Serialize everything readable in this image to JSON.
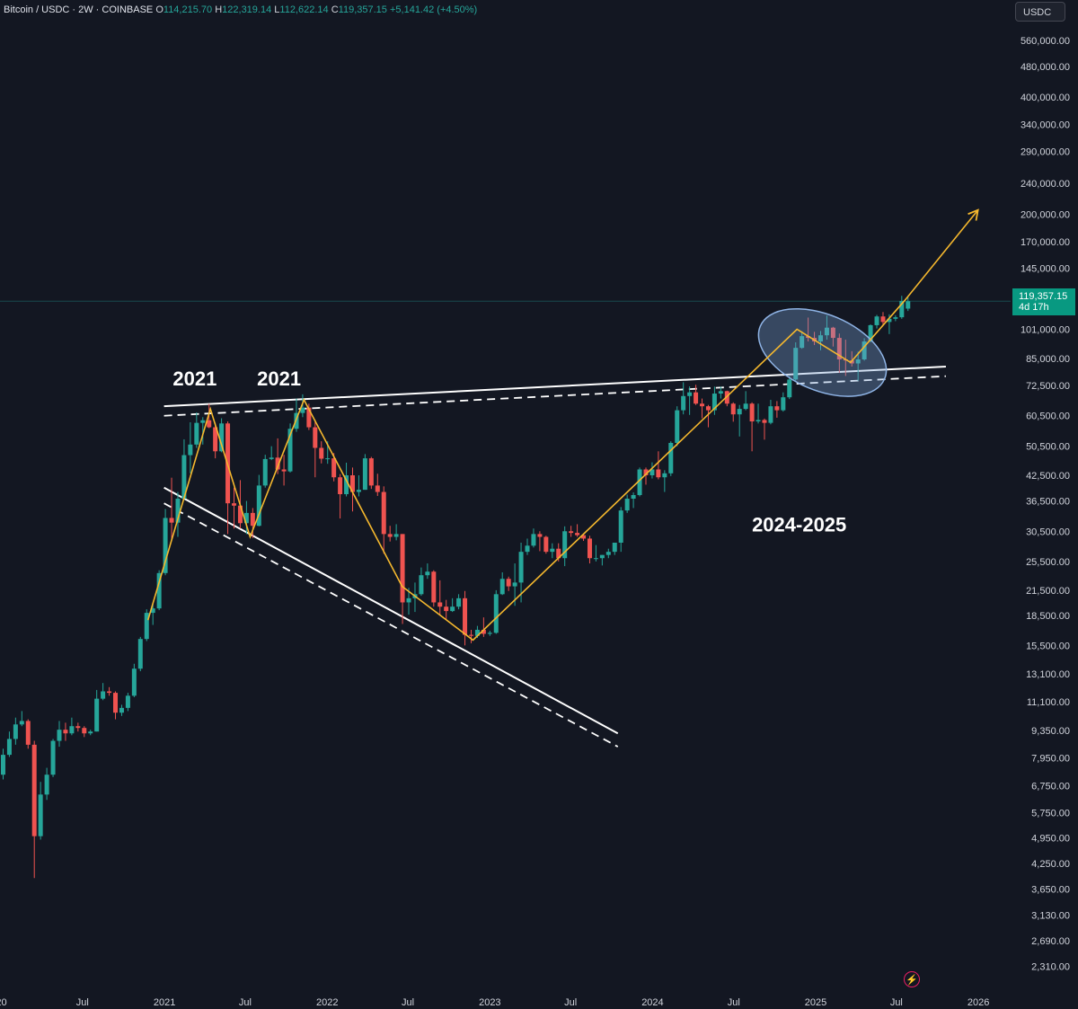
{
  "header": {
    "symbol": "Bitcoin / USDC · 2W · COINBASE",
    "o_label": "O",
    "o_value": "114,215.70",
    "h_label": "H",
    "h_value": "122,319.14",
    "l_label": "L",
    "l_value": "112,622.14",
    "c_label": "C",
    "c_value": "119,357.15",
    "change": "+5,141.42 (+4.50%)"
  },
  "currency_button": "USDC",
  "price_badge": {
    "price": "119,357.15",
    "countdown": "4d 17h"
  },
  "flash_icon": "lightning-icon",
  "colors": {
    "background": "#131722",
    "up": "#26a69a",
    "down": "#ef5350",
    "trend": "#f5b82e",
    "line": "#ffffff",
    "ellipse": "#7ba3d6"
  },
  "chart_data": {
    "type": "candlestick",
    "scale": "log",
    "ylim": [
      2050,
      640000
    ],
    "y_ticks": [
      {
        "label": "560,000.00",
        "v": 560000
      },
      {
        "label": "480,000.00",
        "v": 480000
      },
      {
        "label": "400,000.00",
        "v": 400000
      },
      {
        "label": "340,000.00",
        "v": 340000
      },
      {
        "label": "290,000.00",
        "v": 290000
      },
      {
        "label": "240,000.00",
        "v": 240000
      },
      {
        "label": "200,000.00",
        "v": 200000
      },
      {
        "label": "170,000.00",
        "v": 170000
      },
      {
        "label": "145,000.00",
        "v": 145000
      },
      {
        "label": "101,000.00",
        "v": 101000
      },
      {
        "label": "85,000.00",
        "v": 85000
      },
      {
        "label": "72,500.00",
        "v": 72500
      },
      {
        "label": "60,500.00",
        "v": 60500
      },
      {
        "label": "50,500.00",
        "v": 50500
      },
      {
        "label": "42,500.00",
        "v": 42500
      },
      {
        "label": "36,500.00",
        "v": 36500
      },
      {
        "label": "30,500.00",
        "v": 30500
      },
      {
        "label": "25,500.00",
        "v": 25500
      },
      {
        "label": "21,500.00",
        "v": 21500
      },
      {
        "label": "18,500.00",
        "v": 18500
      },
      {
        "label": "15,500.00",
        "v": 15500
      },
      {
        "label": "13,100.00",
        "v": 13100
      },
      {
        "label": "11,100.00",
        "v": 11100
      },
      {
        "label": "9,350.00",
        "v": 9350
      },
      {
        "label": "7,950.00",
        "v": 7950
      },
      {
        "label": "6,750.00",
        "v": 6750
      },
      {
        "label": "5,750.00",
        "v": 5750
      },
      {
        "label": "4,950.00",
        "v": 4950
      },
      {
        "label": "4,250.00",
        "v": 4250
      },
      {
        "label": "3,650.00",
        "v": 3650
      },
      {
        "label": "3,130.00",
        "v": 3130
      },
      {
        "label": "2,690.00",
        "v": 2690
      },
      {
        "label": "2,310.00",
        "v": 2310
      }
    ],
    "xlim": [
      "2019-12-29",
      "2026-02-12"
    ],
    "x_ticks": [
      {
        "label": "20",
        "t": "2020-01-01"
      },
      {
        "label": "Jul",
        "t": "2020-07-01"
      },
      {
        "label": "2021",
        "t": "2021-01-01"
      },
      {
        "label": "Jul",
        "t": "2021-07-01"
      },
      {
        "label": "2022",
        "t": "2022-01-01"
      },
      {
        "label": "Jul",
        "t": "2022-07-01"
      },
      {
        "label": "2023",
        "t": "2023-01-01"
      },
      {
        "label": "Jul",
        "t": "2023-07-01"
      },
      {
        "label": "2024",
        "t": "2024-01-01"
      },
      {
        "label": "Jul",
        "t": "2024-07-01"
      },
      {
        "label": "2025",
        "t": "2025-01-01"
      },
      {
        "label": "Jul",
        "t": "2025-07-01"
      },
      {
        "label": "2026",
        "t": "2026-01-01"
      }
    ],
    "candles": [
      [
        "2019-12-29",
        7200,
        8400,
        7000,
        8100
      ],
      [
        "2020-01-12",
        8100,
        9300,
        8000,
        8900
      ],
      [
        "2020-01-26",
        8900,
        10100,
        8600,
        9700
      ],
      [
        "2020-02-09",
        9700,
        10500,
        9600,
        9900
      ],
      [
        "2020-02-23",
        9900,
        10000,
        8400,
        8600
      ],
      [
        "2020-03-08",
        8600,
        8800,
        3900,
        5000
      ],
      [
        "2020-03-22",
        5000,
        6900,
        4900,
        6400
      ],
      [
        "2020-04-05",
        6400,
        7500,
        6200,
        7200
      ],
      [
        "2020-04-19",
        7200,
        8900,
        7100,
        8800
      ],
      [
        "2020-05-03",
        8800,
        9900,
        8500,
        9400
      ],
      [
        "2020-05-17",
        9400,
        9800,
        8800,
        9200
      ],
      [
        "2020-05-31",
        9200,
        10100,
        9100,
        9600
      ],
      [
        "2020-06-14",
        9600,
        9800,
        9300,
        9500
      ],
      [
        "2020-06-28",
        9500,
        9600,
        9000,
        9200
      ],
      [
        "2020-07-12",
        9200,
        9400,
        9100,
        9300
      ],
      [
        "2020-07-26",
        9300,
        11900,
        9300,
        11300
      ],
      [
        "2020-08-09",
        11300,
        12400,
        11200,
        11800
      ],
      [
        "2020-08-23",
        11800,
        12100,
        11500,
        11700
      ],
      [
        "2020-09-06",
        11700,
        11800,
        10000,
        10400
      ],
      [
        "2020-09-20",
        10400,
        10900,
        10200,
        10700
      ],
      [
        "2020-10-04",
        10700,
        11700,
        10500,
        11500
      ],
      [
        "2020-10-18",
        11500,
        13900,
        11400,
        13500
      ],
      [
        "2020-11-01",
        13500,
        16300,
        13300,
        16100
      ],
      [
        "2020-11-15",
        16100,
        19200,
        15900,
        18800
      ],
      [
        "2020-11-29",
        18800,
        19900,
        17500,
        19300
      ],
      [
        "2020-12-13",
        19300,
        24200,
        19100,
        23800
      ],
      [
        "2020-12-27",
        23800,
        34800,
        23500,
        33000
      ],
      [
        "2021-01-10",
        33000,
        41900,
        28800,
        32100
      ],
      [
        "2021-01-24",
        32100,
        38500,
        29500,
        37000
      ],
      [
        "2021-02-07",
        37000,
        52600,
        37000,
        47900
      ],
      [
        "2021-02-21",
        47900,
        58200,
        43000,
        51000
      ],
      [
        "2021-03-07",
        51000,
        61700,
        50000,
        58000
      ],
      [
        "2021-03-21",
        58000,
        60000,
        51000,
        58900
      ],
      [
        "2021-04-04",
        58900,
        64900,
        56200,
        56500
      ],
      [
        "2021-04-18",
        56500,
        58000,
        47000,
        49000
      ],
      [
        "2021-05-02",
        49000,
        59600,
        48700,
        57800
      ],
      [
        "2021-05-16",
        57800,
        58500,
        30000,
        36000
      ],
      [
        "2021-05-30",
        36000,
        39500,
        31000,
        35500
      ],
      [
        "2021-06-13",
        35500,
        41300,
        31000,
        32000
      ],
      [
        "2021-06-27",
        32000,
        36500,
        30000,
        34000
      ],
      [
        "2021-07-11",
        34000,
        35000,
        29300,
        31500
      ],
      [
        "2021-07-25",
        31500,
        42600,
        31400,
        40000
      ],
      [
        "2021-08-08",
        40000,
        48000,
        39500,
        46800
      ],
      [
        "2021-08-22",
        46800,
        50500,
        46500,
        47200
      ],
      [
        "2021-09-05",
        47200,
        52900,
        42800,
        44000
      ],
      [
        "2021-09-19",
        44000,
        48000,
        40000,
        43500
      ],
      [
        "2021-10-03",
        43500,
        57800,
        43200,
        56000
      ],
      [
        "2021-10-17",
        56000,
        67000,
        55000,
        61500
      ],
      [
        "2021-10-31",
        61500,
        68700,
        60000,
        63500
      ],
      [
        "2021-11-14",
        63500,
        65000,
        55600,
        56500
      ],
      [
        "2021-11-28",
        56500,
        59000,
        42000,
        50000
      ],
      [
        "2021-12-12",
        50000,
        52000,
        45600,
        46900
      ],
      [
        "2021-12-26",
        46900,
        52000,
        45500,
        47000
      ],
      [
        "2022-01-09",
        47000,
        48500,
        41000,
        42000
      ],
      [
        "2022-01-23",
        42000,
        42800,
        32900,
        38000
      ],
      [
        "2022-02-06",
        38000,
        45800,
        37500,
        42500
      ],
      [
        "2022-02-20",
        42500,
        44500,
        34300,
        38500
      ],
      [
        "2022-03-06",
        38500,
        42500,
        37500,
        39000
      ],
      [
        "2022-03-20",
        39000,
        48200,
        39000,
        47000
      ],
      [
        "2022-04-03",
        47000,
        47400,
        39200,
        40000
      ],
      [
        "2022-04-17",
        40000,
        42900,
        37600,
        38500
      ],
      [
        "2022-05-01",
        38500,
        39800,
        26700,
        30000
      ],
      [
        "2022-05-15",
        30000,
        31500,
        28700,
        29500
      ],
      [
        "2022-05-29",
        29500,
        31800,
        28900,
        30000
      ],
      [
        "2022-06-12",
        30000,
        30000,
        17600,
        20000
      ],
      [
        "2022-06-26",
        20000,
        21800,
        18600,
        20500
      ],
      [
        "2022-07-10",
        20500,
        22500,
        18900,
        21000
      ],
      [
        "2022-07-24",
        21000,
        24600,
        20800,
        23500
      ],
      [
        "2022-08-07",
        23500,
        25200,
        23000,
        24000
      ],
      [
        "2022-08-21",
        24000,
        24200,
        19500,
        20000
      ],
      [
        "2022-09-04",
        20000,
        22800,
        18500,
        19500
      ],
      [
        "2022-09-18",
        19500,
        20300,
        18100,
        19000
      ],
      [
        "2022-10-02",
        19000,
        20500,
        18900,
        19500
      ],
      [
        "2022-10-16",
        19500,
        21000,
        19200,
        20500
      ],
      [
        "2022-10-30",
        20500,
        21400,
        15500,
        16500
      ],
      [
        "2022-11-13",
        16500,
        17000,
        15700,
        16400
      ],
      [
        "2022-11-27",
        16400,
        17400,
        16200,
        17000
      ],
      [
        "2022-12-11",
        17000,
        18300,
        16300,
        16600
      ],
      [
        "2022-12-25",
        16600,
        16900,
        16400,
        16700
      ],
      [
        "2023-01-08",
        16700,
        21500,
        16600,
        21000
      ],
      [
        "2023-01-22",
        21000,
        23900,
        20900,
        23000
      ],
      [
        "2023-02-05",
        23000,
        23300,
        21400,
        22000
      ],
      [
        "2023-02-19",
        22000,
        25200,
        19600,
        22500
      ],
      [
        "2023-03-05",
        22500,
        28500,
        20000,
        27000
      ],
      [
        "2023-03-19",
        27000,
        29200,
        26500,
        28000
      ],
      [
        "2023-04-02",
        28000,
        31000,
        27700,
        30000
      ],
      [
        "2023-04-16",
        30000,
        30500,
        27100,
        29500
      ],
      [
        "2023-04-30",
        29500,
        29700,
        26700,
        27000
      ],
      [
        "2023-05-14",
        27000,
        28400,
        26000,
        27500
      ],
      [
        "2023-05-28",
        27500,
        28400,
        25500,
        26000
      ],
      [
        "2023-06-11",
        26000,
        31400,
        24800,
        30500
      ],
      [
        "2023-06-25",
        30500,
        31500,
        29500,
        30200
      ],
      [
        "2023-07-09",
        30200,
        31800,
        29500,
        29800
      ],
      [
        "2023-07-23",
        29800,
        30000,
        28800,
        29200
      ],
      [
        "2023-08-06",
        29200,
        29700,
        25200,
        26000
      ],
      [
        "2023-08-20",
        26000,
        28100,
        25500,
        26000
      ],
      [
        "2023-09-03",
        26000,
        26500,
        24900,
        26500
      ],
      [
        "2023-09-17",
        26500,
        27500,
        26000,
        27000
      ],
      [
        "2023-10-01",
        27000,
        28500,
        26500,
        28500
      ],
      [
        "2023-10-15",
        28500,
        35200,
        27000,
        34500
      ],
      [
        "2023-10-29",
        34500,
        37900,
        34000,
        37000
      ],
      [
        "2023-11-12",
        37000,
        38400,
        35000,
        37800
      ],
      [
        "2023-11-26",
        37800,
        44500,
        37500,
        44000
      ],
      [
        "2023-12-10",
        44000,
        44500,
        40200,
        42500
      ],
      [
        "2023-12-24",
        42500,
        45900,
        41700,
        44000
      ],
      [
        "2024-01-07",
        44000,
        49000,
        41500,
        42000
      ],
      [
        "2024-01-21",
        42000,
        43800,
        38500,
        43000
      ],
      [
        "2024-02-04",
        43000,
        52000,
        42300,
        51500
      ],
      [
        "2024-02-18",
        51500,
        64000,
        50500,
        62500
      ],
      [
        "2024-03-03",
        62500,
        73800,
        61000,
        68000
      ],
      [
        "2024-03-17",
        68000,
        72000,
        60800,
        69500
      ],
      [
        "2024-03-31",
        69500,
        72700,
        64500,
        65000
      ],
      [
        "2024-04-14",
        65000,
        67000,
        59600,
        64000
      ],
      [
        "2024-04-28",
        64000,
        64500,
        56500,
        62500
      ],
      [
        "2024-05-12",
        62500,
        71900,
        60800,
        69000
      ],
      [
        "2024-05-26",
        69000,
        71900,
        67000,
        70000
      ],
      [
        "2024-06-09",
        70000,
        70200,
        64000,
        65000
      ],
      [
        "2024-06-23",
        65000,
        65500,
        58400,
        61000
      ],
      [
        "2024-07-07",
        61000,
        64500,
        53500,
        63000
      ],
      [
        "2024-07-21",
        63000,
        70000,
        62500,
        65000
      ],
      [
        "2024-08-04",
        65000,
        65500,
        49000,
        58500
      ],
      [
        "2024-08-18",
        58500,
        65000,
        57800,
        59000
      ],
      [
        "2024-09-01",
        59000,
        59500,
        52500,
        58000
      ],
      [
        "2024-09-15",
        58000,
        66500,
        57500,
        64000
      ],
      [
        "2024-09-29",
        64000,
        66000,
        59800,
        62500
      ],
      [
        "2024-10-13",
        62500,
        69500,
        62000,
        67500
      ],
      [
        "2024-10-27",
        67500,
        76500,
        66800,
        75000
      ],
      [
        "2024-11-10",
        75000,
        93500,
        74500,
        90500
      ],
      [
        "2024-11-24",
        90500,
        99800,
        90000,
        97000
      ],
      [
        "2024-12-08",
        97000,
        108300,
        94000,
        96000
      ],
      [
        "2024-12-22",
        96000,
        99500,
        92000,
        94000
      ],
      [
        "2025-01-05",
        94000,
        100000,
        89200,
        97500
      ],
      [
        "2025-01-19",
        97500,
        109600,
        95000,
        102000
      ],
      [
        "2025-02-02",
        102000,
        102500,
        91200,
        96000
      ],
      [
        "2025-02-16",
        96000,
        98500,
        78000,
        84500
      ],
      [
        "2025-03-02",
        84500,
        95000,
        76600,
        84000
      ],
      [
        "2025-03-16",
        84000,
        88700,
        81000,
        82500
      ],
      [
        "2025-03-30",
        82500,
        88500,
        74500,
        84500
      ],
      [
        "2025-04-13",
        84500,
        95800,
        83900,
        94000
      ],
      [
        "2025-04-27",
        94000,
        104000,
        93500,
        103500
      ],
      [
        "2025-05-11",
        103500,
        110000,
        101500,
        109000
      ],
      [
        "2025-05-25",
        109000,
        111900,
        103100,
        105500
      ],
      [
        "2025-06-08",
        105500,
        110400,
        98200,
        107500
      ],
      [
        "2025-06-22",
        107500,
        109800,
        106000,
        108500
      ],
      [
        "2025-07-06",
        108500,
        123200,
        107500,
        119500
      ],
      [
        "2025-07-20",
        114200,
        122300,
        112600,
        119357
      ]
    ],
    "trend_lines": [
      {
        "p1": [
          "2020-12-31",
          64000
        ],
        "p2": [
          "2025-10-20",
          81000
        ],
        "style": "solid"
      },
      {
        "p1": [
          "2020-12-31",
          60500
        ],
        "p2": [
          "2025-10-20",
          76500
        ],
        "style": "dashed"
      },
      {
        "p1": [
          "2020-12-31",
          39500
        ],
        "p2": [
          "2023-10-15",
          9200
        ],
        "style": "solid"
      },
      {
        "p1": [
          "2020-12-31",
          36000
        ],
        "p2": [
          "2023-10-15",
          8500
        ],
        "style": "dashed"
      }
    ],
    "zigzag": [
      [
        "2020-11-25",
        18000
      ],
      [
        "2021-04-14",
        63000
      ],
      [
        "2021-07-12",
        29500
      ],
      [
        "2021-11-10",
        66500
      ],
      [
        "2022-06-18",
        22000
      ],
      [
        "2022-11-24",
        16000
      ],
      [
        "2024-11-20",
        101000
      ],
      [
        "2025-03-20",
        83000
      ],
      [
        "2025-07-20",
        120000
      ],
      [
        "2025-12-31",
        205000
      ]
    ],
    "ellipse": {
      "center": [
        "2025-01-16",
        88000
      ],
      "rx_days": 95,
      "top": 116000,
      "bottom": 74000,
      "rotation_deg": 23
    },
    "current_price": 119357.15,
    "annotations": [
      {
        "text": "2021",
        "t": "2021-03-10",
        "v": 72500
      },
      {
        "text": "2021",
        "t": "2021-09-15",
        "v": 72500
      },
      {
        "text": "2024-2025",
        "t": "2024-11-25",
        "v": 30500
      }
    ]
  }
}
